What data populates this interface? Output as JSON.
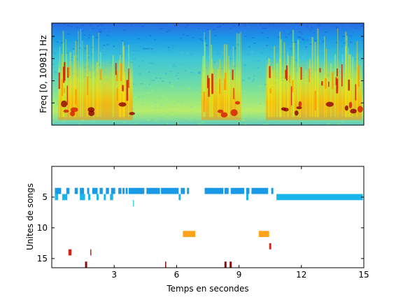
{
  "chart_data": [
    {
      "type": "heatmap",
      "ylabel": "Freq [0, 10981] Hz",
      "xlim": [
        0,
        15
      ],
      "ylim": [
        0,
        10981
      ],
      "yticks_labeled": false,
      "colormap": "jet",
      "dominant_colors": [
        "#1a3fd6",
        "#1a9ae6",
        "#5ad6c8",
        "#b4ff4a",
        "#ffe400",
        "#ff9a00",
        "#d61a00",
        "#8c0000"
      ],
      "high_energy_segments_s": [
        [
          0.3,
          3.9
        ],
        [
          7.2,
          9.1
        ],
        [
          10.3,
          14.9
        ]
      ],
      "low_band_energy_hz": [
        0,
        2500
      ]
    },
    {
      "type": "scatter",
      "xlabel": "Temps en secondes",
      "ylabel": "Unites de songs",
      "xlim": [
        0,
        15
      ],
      "ylim": [
        0,
        16.5
      ],
      "y_reversed": true,
      "xticks": [
        "3",
        "6",
        "9",
        "12",
        "15"
      ],
      "yticks": [
        "5",
        "10",
        "15"
      ],
      "grid": false,
      "series": [
        {
          "unit": 4,
          "color": "#1a9ae6",
          "segments": [
            [
              0.15,
              0.45
            ],
            [
              0.7,
              0.85
            ],
            [
              1.1,
              1.25
            ],
            [
              1.35,
              1.55
            ],
            [
              1.7,
              1.8
            ],
            [
              1.95,
              2.2
            ],
            [
              2.3,
              2.45
            ],
            [
              2.6,
              2.75
            ],
            [
              2.85,
              3.05
            ],
            [
              3.2,
              3.35
            ],
            [
              3.4,
              3.5
            ],
            [
              3.55,
              3.65
            ],
            [
              3.7,
              4.45
            ],
            [
              4.55,
              5.2
            ],
            [
              5.25,
              6.1
            ],
            [
              6.2,
              6.4
            ],
            [
              6.5,
              6.6
            ],
            [
              7.35,
              8.25
            ],
            [
              8.3,
              8.5
            ],
            [
              8.6,
              9.25
            ],
            [
              9.35,
              9.5
            ],
            [
              9.6,
              10.4
            ],
            [
              10.55,
              10.65
            ]
          ]
        },
        {
          "unit": 5,
          "color": "#19b6ec",
          "segments": [
            [
              0.15,
              0.3
            ],
            [
              0.5,
              0.75
            ],
            [
              1.35,
              1.6
            ],
            [
              1.75,
              1.85
            ],
            [
              2.15,
              2.25
            ],
            [
              2.5,
              2.6
            ],
            [
              2.8,
              2.95
            ],
            [
              6.1,
              6.2
            ],
            [
              9.35,
              9.45
            ],
            [
              10.8,
              14.95
            ]
          ]
        },
        {
          "unit": 6,
          "color": "#3cd0e4",
          "segments": [
            [
              3.9,
              3.95
            ]
          ]
        },
        {
          "unit": 11,
          "color": "#ffa41a",
          "segments": [
            [
              6.3,
              6.9
            ],
            [
              9.95,
              10.45
            ]
          ]
        },
        {
          "unit": 13,
          "color": "#e2221a",
          "segments": [
            [
              10.45,
              10.55
            ]
          ]
        },
        {
          "unit": 14,
          "color": "#d6231a",
          "segments": [
            [
              0.8,
              0.95
            ],
            [
              1.85,
              1.9
            ]
          ]
        },
        {
          "unit": 16,
          "color": "#8c0b0b",
          "segments": [
            [
              1.6,
              1.7
            ],
            [
              5.45,
              5.5
            ],
            [
              8.3,
              8.4
            ],
            [
              8.55,
              8.65
            ]
          ]
        }
      ]
    }
  ]
}
